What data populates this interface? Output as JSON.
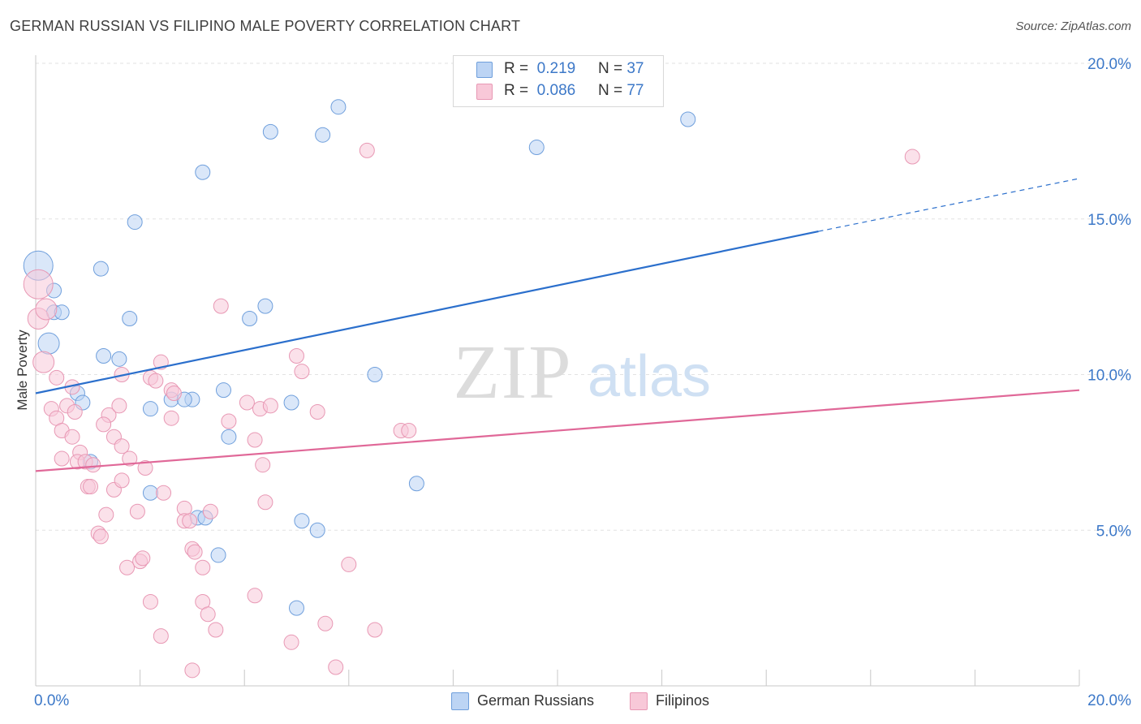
{
  "title": "GERMAN RUSSIAN VS FILIPINO MALE POVERTY CORRELATION CHART",
  "source": "Source: ZipAtlas.com",
  "watermark": {
    "zip": "ZIP",
    "atlas": "atlas"
  },
  "legend": {
    "r_label": "R =",
    "n_label": "N =",
    "rows": [
      {
        "r": "0.219",
        "n": "37"
      },
      {
        "r": "0.086",
        "n": "77"
      }
    ]
  },
  "chart_data": {
    "type": "scatter",
    "ylabel": "Male Poverty",
    "xlim": [
      0,
      20
    ],
    "ylim": [
      0,
      20
    ],
    "x_tick_labels": [
      {
        "value": 0,
        "label": "0.0%"
      },
      {
        "value": 20,
        "label": "20.0%"
      }
    ],
    "y_tick_labels": [
      {
        "value": 5,
        "label": "5.0%"
      },
      {
        "value": 10,
        "label": "10.0%"
      },
      {
        "value": 15,
        "label": "15.0%"
      },
      {
        "value": 20,
        "label": "20.0%"
      }
    ],
    "colors": {
      "German Russians": {
        "fill": "#bcd4f4",
        "stroke": "#6f9fdc",
        "line": "#2b6fcc"
      },
      "Filipinos": {
        "fill": "#f8c8d8",
        "stroke": "#e898b4",
        "line": "#e06898"
      }
    },
    "series": [
      {
        "name": "German Russians",
        "r": 0.219,
        "n": 37,
        "trend": {
          "x0": 0,
          "y0": 9.4,
          "x1": 15,
          "y1": 14.6,
          "dash_to_x": 20,
          "dash_to_y": 16.3
        },
        "points": [
          [
            0.05,
            13.5
          ],
          [
            0.35,
            12.7
          ],
          [
            0.35,
            12.0
          ],
          [
            0.5,
            12.0
          ],
          [
            0.25,
            11.0
          ],
          [
            1.25,
            13.4
          ],
          [
            1.8,
            11.8
          ],
          [
            1.3,
            10.6
          ],
          [
            1.6,
            10.5
          ],
          [
            0.8,
            9.4
          ],
          [
            0.9,
            9.1
          ],
          [
            1.05,
            7.2
          ],
          [
            1.9,
            14.9
          ],
          [
            3.2,
            16.5
          ],
          [
            4.5,
            17.8
          ],
          [
            5.5,
            17.7
          ],
          [
            5.8,
            18.6
          ],
          [
            9.6,
            17.3
          ],
          [
            12.5,
            18.2
          ],
          [
            4.4,
            12.2
          ],
          [
            4.1,
            11.8
          ],
          [
            2.6,
            9.2
          ],
          [
            3.0,
            9.2
          ],
          [
            2.2,
            8.9
          ],
          [
            2.85,
            9.2
          ],
          [
            3.6,
            9.5
          ],
          [
            4.9,
            9.1
          ],
          [
            3.7,
            8.0
          ],
          [
            6.5,
            10.0
          ],
          [
            7.3,
            6.5
          ],
          [
            2.2,
            6.2
          ],
          [
            3.1,
            5.4
          ],
          [
            3.25,
            5.4
          ],
          [
            5.1,
            5.3
          ],
          [
            5.4,
            5.0
          ],
          [
            3.5,
            4.2
          ],
          [
            5.0,
            2.5
          ]
        ]
      },
      {
        "name": "Filipinos",
        "r": 0.086,
        "n": 77,
        "trend": {
          "x0": 0,
          "y0": 6.9,
          "x1": 20,
          "y1": 9.5
        },
        "points": [
          [
            0.05,
            12.9
          ],
          [
            0.05,
            11.8
          ],
          [
            0.2,
            12.1
          ],
          [
            0.15,
            10.4
          ],
          [
            0.4,
            9.9
          ],
          [
            0.3,
            8.9
          ],
          [
            0.4,
            8.6
          ],
          [
            0.6,
            9.0
          ],
          [
            0.7,
            9.6
          ],
          [
            0.75,
            8.8
          ],
          [
            0.5,
            8.2
          ],
          [
            0.7,
            8.0
          ],
          [
            0.85,
            7.5
          ],
          [
            0.5,
            7.3
          ],
          [
            0.8,
            7.2
          ],
          [
            0.95,
            7.2
          ],
          [
            1.1,
            7.1
          ],
          [
            1.0,
            6.4
          ],
          [
            1.05,
            6.4
          ],
          [
            1.5,
            6.3
          ],
          [
            1.4,
            8.7
          ],
          [
            1.3,
            8.4
          ],
          [
            1.5,
            8.0
          ],
          [
            1.65,
            7.7
          ],
          [
            1.8,
            7.3
          ],
          [
            1.65,
            6.6
          ],
          [
            1.6,
            9.0
          ],
          [
            1.65,
            10.0
          ],
          [
            2.2,
            9.9
          ],
          [
            2.3,
            9.8
          ],
          [
            2.4,
            10.4
          ],
          [
            2.6,
            9.5
          ],
          [
            2.65,
            9.4
          ],
          [
            2.6,
            8.6
          ],
          [
            2.1,
            7.0
          ],
          [
            2.45,
            6.2
          ],
          [
            1.35,
            5.5
          ],
          [
            1.95,
            5.6
          ],
          [
            2.85,
            5.7
          ],
          [
            2.85,
            5.3
          ],
          [
            2.95,
            5.3
          ],
          [
            3.35,
            5.6
          ],
          [
            1.2,
            4.9
          ],
          [
            1.25,
            4.8
          ],
          [
            2.0,
            4.0
          ],
          [
            2.05,
            4.1
          ],
          [
            1.75,
            3.8
          ],
          [
            3.0,
            4.4
          ],
          [
            3.05,
            4.3
          ],
          [
            3.2,
            3.8
          ],
          [
            2.2,
            2.7
          ],
          [
            3.2,
            2.7
          ],
          [
            3.3,
            2.3
          ],
          [
            2.4,
            1.6
          ],
          [
            3.45,
            1.8
          ],
          [
            3.0,
            0.5
          ],
          [
            3.55,
            12.2
          ],
          [
            3.7,
            8.5
          ],
          [
            4.05,
            9.1
          ],
          [
            4.2,
            7.9
          ],
          [
            4.3,
            8.9
          ],
          [
            4.5,
            9.0
          ],
          [
            4.35,
            7.1
          ],
          [
            4.4,
            5.9
          ],
          [
            5.0,
            10.6
          ],
          [
            5.1,
            10.1
          ],
          [
            5.4,
            8.8
          ],
          [
            4.2,
            2.9
          ],
          [
            4.9,
            1.4
          ],
          [
            5.55,
            2.0
          ],
          [
            5.75,
            0.6
          ],
          [
            6.0,
            3.9
          ],
          [
            6.35,
            17.2
          ],
          [
            6.5,
            1.8
          ],
          [
            7.0,
            8.2
          ],
          [
            7.15,
            8.2
          ],
          [
            16.8,
            17.0
          ]
        ]
      }
    ]
  }
}
